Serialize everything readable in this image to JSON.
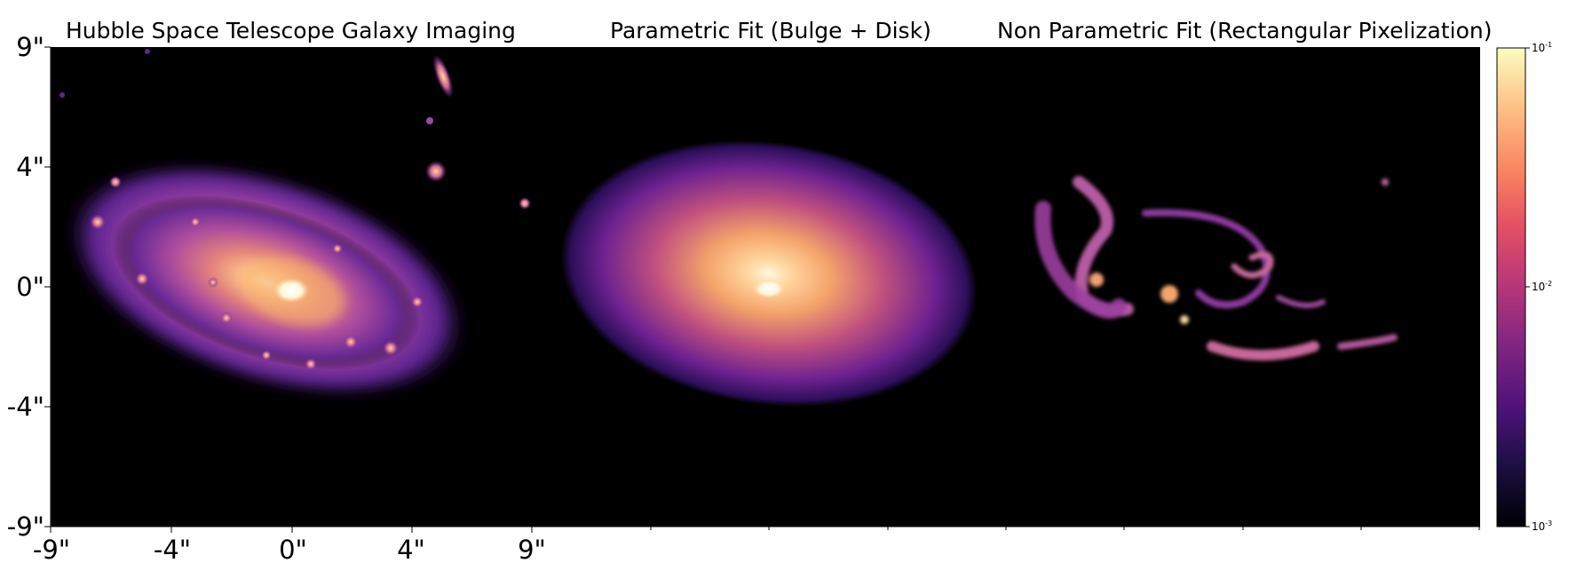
{
  "panels": [
    {
      "title": "Hubble Space Telescope Galaxy Imaging"
    },
    {
      "title": "Parametric Fit (Bulge + Disk)"
    },
    {
      "title": "Non Parametric Fit (Rectangular Pixelization)"
    }
  ],
  "axes": {
    "y_ticks": [
      "9\"",
      "4\"",
      "0\"",
      "-4\"",
      "-9\""
    ],
    "x_ticks": [
      "-9\"",
      "-4\"",
      "0\"",
      "4\"",
      "9\""
    ]
  },
  "colorbar": {
    "colormap": "magma",
    "scale": "log",
    "range": [
      0.001,
      0.1
    ],
    "ticks": [
      "10",
      "10",
      "10"
    ],
    "tick_exponents": [
      "-1",
      "-2",
      "-3"
    ]
  },
  "colors": {
    "background": "#000000",
    "core": "#fffbe8",
    "mid": "#f6a95f",
    "outer": "#8a2a8e",
    "faint": "#2c1056"
  }
}
